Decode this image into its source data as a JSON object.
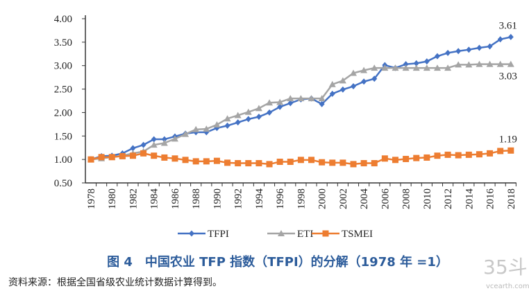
{
  "chart_data": {
    "type": "line",
    "x": [
      1978,
      1979,
      1980,
      1981,
      1982,
      1983,
      1984,
      1985,
      1986,
      1987,
      1988,
      1989,
      1990,
      1991,
      1992,
      1993,
      1994,
      1995,
      1996,
      1997,
      1998,
      1999,
      2000,
      2001,
      2002,
      2003,
      2004,
      2005,
      2006,
      2007,
      2008,
      2009,
      2010,
      2011,
      2012,
      2013,
      2014,
      2015,
      2016,
      2017,
      2018
    ],
    "x_tick_labels": [
      "1978",
      "1980",
      "1982",
      "1984",
      "1986",
      "1988",
      "1990",
      "1992",
      "1994",
      "1996",
      "1998",
      "2000",
      "2002",
      "2004",
      "2006",
      "2008",
      "2010",
      "2012",
      "2014",
      "2016",
      "2018"
    ],
    "y_tick_labels": [
      "0.50",
      "1.00",
      "1.50",
      "2.00",
      "2.50",
      "3.00",
      "3.50",
      "4.00"
    ],
    "ylim": [
      0.5,
      4.0
    ],
    "grid": false,
    "legend_position": "bottom",
    "series": [
      {
        "name": "TFPI",
        "color": "#4472c4",
        "marker": "diamond",
        "values": [
          1.0,
          1.07,
          1.08,
          1.13,
          1.24,
          1.31,
          1.43,
          1.43,
          1.49,
          1.55,
          1.58,
          1.58,
          1.67,
          1.72,
          1.79,
          1.86,
          1.91,
          2.0,
          2.12,
          2.2,
          2.28,
          2.3,
          2.18,
          2.4,
          2.49,
          2.56,
          2.66,
          2.72,
          3.01,
          2.95,
          3.03,
          3.05,
          3.09,
          3.2,
          3.27,
          3.31,
          3.34,
          3.38,
          3.41,
          3.56,
          3.61
        ],
        "end_label": "3.61"
      },
      {
        "name": "ETI",
        "color": "#a5a5a5",
        "marker": "triangle",
        "values": [
          1.0,
          1.02,
          1.05,
          1.08,
          1.13,
          1.17,
          1.31,
          1.35,
          1.44,
          1.54,
          1.64,
          1.65,
          1.74,
          1.87,
          1.94,
          2.01,
          2.09,
          2.21,
          2.22,
          2.3,
          2.3,
          2.3,
          2.3,
          2.6,
          2.68,
          2.84,
          2.9,
          2.95,
          2.95,
          2.95,
          2.95,
          2.95,
          2.95,
          2.95,
          2.95,
          3.02,
          3.02,
          3.03,
          3.03,
          3.03,
          3.03
        ],
        "end_label": "3.03"
      },
      {
        "name": "TSMEI",
        "color": "#ed7d31",
        "marker": "square",
        "values": [
          1.0,
          1.05,
          1.05,
          1.07,
          1.08,
          1.13,
          1.08,
          1.04,
          1.02,
          0.99,
          0.96,
          0.96,
          0.97,
          0.93,
          0.92,
          0.92,
          0.92,
          0.9,
          0.95,
          0.95,
          0.99,
          0.99,
          0.94,
          0.93,
          0.93,
          0.9,
          0.92,
          0.92,
          1.02,
          0.99,
          1.01,
          1.03,
          1.04,
          1.08,
          1.1,
          1.09,
          1.1,
          1.11,
          1.13,
          1.18,
          1.19
        ],
        "end_label": "1.19"
      }
    ]
  },
  "caption": "图 4　中国农业 TFP 指数（TFPI）的分解（1978 年 =1）",
  "source": "资料来源：根据全国省级农业统计数据计算得到。",
  "watermark": {
    "logo": "35斗",
    "site": "vcearth.com"
  }
}
